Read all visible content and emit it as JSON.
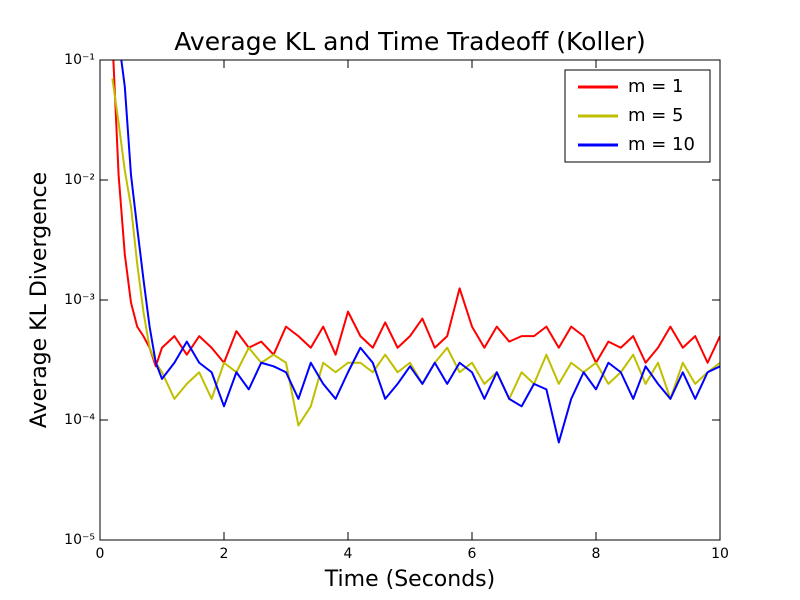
{
  "chart_data": {
    "type": "line",
    "title": "Average KL and Time Tradeoff (Koller)",
    "xlabel": "Time (Seconds)",
    "ylabel": "Average KL Divergence",
    "x": [
      0.2,
      0.3,
      0.4,
      0.5,
      0.6,
      0.7,
      0.8,
      0.9,
      1.0,
      1.2,
      1.4,
      1.6,
      1.8,
      2.0,
      2.2,
      2.4,
      2.6,
      2.8,
      3.0,
      3.2,
      3.4,
      3.6,
      3.8,
      4.0,
      4.2,
      4.4,
      4.6,
      4.8,
      5.0,
      5.2,
      5.4,
      5.6,
      5.8,
      6.0,
      6.2,
      6.4,
      6.6,
      6.8,
      7.0,
      7.2,
      7.4,
      7.6,
      7.8,
      8.0,
      8.2,
      8.4,
      8.6,
      8.8,
      9.0,
      9.2,
      9.4,
      9.6,
      9.8,
      10.0
    ],
    "series": [
      {
        "name": "m = 1",
        "color": "#ff0000",
        "values": [
          0.15,
          0.011,
          0.0024,
          0.00095,
          0.0006,
          0.0005,
          0.0004,
          0.00028,
          0.0004,
          0.0005,
          0.00035,
          0.0005,
          0.0004,
          0.0003,
          0.00055,
          0.0004,
          0.00045,
          0.00035,
          0.0006,
          0.0005,
          0.0004,
          0.0006,
          0.00035,
          0.0008,
          0.0005,
          0.0004,
          0.00065,
          0.0004,
          0.0005,
          0.0007,
          0.0004,
          0.0005,
          0.00125,
          0.0006,
          0.0004,
          0.0006,
          0.00045,
          0.0005,
          0.0005,
          0.0006,
          0.0004,
          0.0006,
          0.0005,
          0.0003,
          0.00045,
          0.0004,
          0.0005,
          0.0003,
          0.0004,
          0.0006,
          0.0004,
          0.0005,
          0.0003,
          0.0005
        ]
      },
      {
        "name": "m = 5",
        "color": "#bfbf00",
        "values": [
          0.07,
          0.03,
          0.012,
          0.006,
          0.002,
          0.0008,
          0.0004,
          0.0003,
          0.00025,
          0.00015,
          0.0002,
          0.00025,
          0.00015,
          0.0003,
          0.00025,
          0.0004,
          0.0003,
          0.00035,
          0.0003,
          9e-05,
          0.00013,
          0.0003,
          0.00025,
          0.0003,
          0.0003,
          0.00025,
          0.00035,
          0.00025,
          0.0003,
          0.0002,
          0.0003,
          0.0004,
          0.00025,
          0.0003,
          0.0002,
          0.00025,
          0.00015,
          0.00025,
          0.0002,
          0.00035,
          0.0002,
          0.0003,
          0.00025,
          0.0003,
          0.0002,
          0.00025,
          0.00035,
          0.0002,
          0.0003,
          0.00015,
          0.0003,
          0.0002,
          0.00025,
          0.0003
        ]
      },
      {
        "name": "m = 10",
        "color": "#0000ff",
        "values": [
          0.15,
          0.15,
          0.06,
          0.011,
          0.004,
          0.0015,
          0.0006,
          0.0003,
          0.00022,
          0.0003,
          0.00045,
          0.0003,
          0.00025,
          0.00013,
          0.00025,
          0.00018,
          0.0003,
          0.00028,
          0.00025,
          0.00015,
          0.0003,
          0.0002,
          0.00015,
          0.00025,
          0.0004,
          0.0003,
          0.00015,
          0.0002,
          0.00028,
          0.0002,
          0.0003,
          0.0002,
          0.0003,
          0.00025,
          0.00015,
          0.00025,
          0.00015,
          0.00013,
          0.0002,
          0.00018,
          6.5e-05,
          0.00015,
          0.00025,
          0.00018,
          0.0003,
          0.00025,
          0.00015,
          0.00028,
          0.0002,
          0.00015,
          0.00025,
          0.00015,
          0.00025,
          0.00028
        ]
      }
    ],
    "xlim": [
      0,
      10
    ],
    "xticks": [
      0,
      2,
      4,
      6,
      8,
      10
    ],
    "ylim": [
      1e-05,
      0.1
    ],
    "ylog": true,
    "yticks": [
      {
        "value": 1e-05,
        "label": "10⁻⁵"
      },
      {
        "value": 0.0001,
        "label": "10⁻⁴"
      },
      {
        "value": 0.001,
        "label": "10⁻³"
      },
      {
        "value": 0.01,
        "label": "10⁻²"
      },
      {
        "value": 0.1,
        "label": "10⁻¹"
      }
    ],
    "legend": "upper right"
  }
}
